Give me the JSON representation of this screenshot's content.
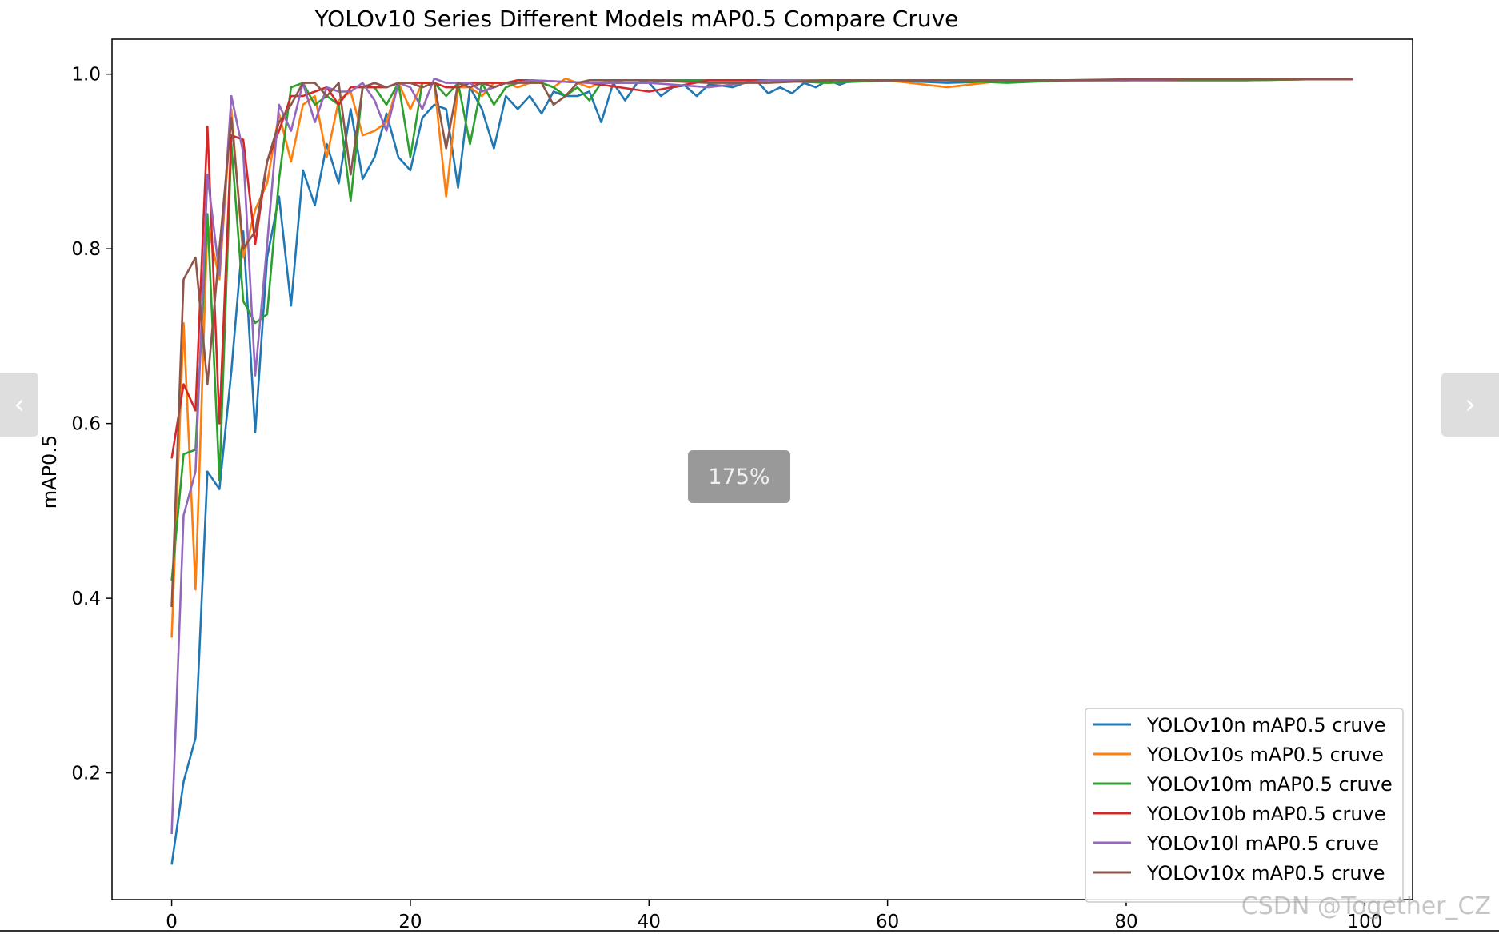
{
  "viewer": {
    "zoom_label": "175%",
    "prev_icon": "chevron-left-icon",
    "next_icon": "chevron-right-icon",
    "prev_glyph": "‹",
    "next_glyph": "›",
    "watermark": "CSDN @Together_CZ"
  },
  "chart_data": {
    "type": "line",
    "title": "YOLOv10 Series Different Models mAP0.5 Compare Cruve",
    "xlabel": "",
    "ylabel": "mAP0.5",
    "xlim": [
      -5,
      104
    ],
    "ylim": [
      0.055,
      1.04
    ],
    "xticks": [
      0,
      20,
      40,
      60,
      80,
      100
    ],
    "yticks": [
      0.2,
      0.4,
      0.6,
      0.8,
      1.0
    ],
    "grid": false,
    "legend": "lower right",
    "series": [
      {
        "name": "YOLOv10n mAP0.5 cruve",
        "color": "#1f77b4",
        "x": [
          0,
          1,
          2,
          3,
          4,
          5,
          6,
          7,
          8,
          9,
          10,
          11,
          12,
          13,
          14,
          15,
          16,
          17,
          18,
          19,
          20,
          21,
          22,
          23,
          24,
          25,
          26,
          27,
          28,
          29,
          30,
          31,
          32,
          33,
          34,
          35,
          36,
          37,
          38,
          39,
          40,
          41,
          42,
          43,
          44,
          45,
          46,
          47,
          48,
          49,
          50,
          51,
          52,
          53,
          54,
          55,
          56,
          57,
          58,
          59,
          60,
          65,
          70,
          75,
          80,
          85,
          90,
          95,
          99
        ],
        "y": [
          0.095,
          0.19,
          0.24,
          0.545,
          0.525,
          0.66,
          0.82,
          0.59,
          0.79,
          0.86,
          0.735,
          0.89,
          0.85,
          0.92,
          0.875,
          0.96,
          0.88,
          0.905,
          0.955,
          0.905,
          0.89,
          0.95,
          0.965,
          0.96,
          0.87,
          0.985,
          0.96,
          0.915,
          0.975,
          0.96,
          0.975,
          0.955,
          0.98,
          0.975,
          0.975,
          0.98,
          0.945,
          0.99,
          0.97,
          0.99,
          0.99,
          0.975,
          0.985,
          0.987,
          0.975,
          0.988,
          0.987,
          0.985,
          0.99,
          0.993,
          0.978,
          0.985,
          0.978,
          0.99,
          0.985,
          0.993,
          0.988,
          0.993,
          0.993,
          0.993,
          0.993,
          0.99,
          0.992,
          0.993,
          0.993,
          0.993,
          0.993,
          0.994,
          0.994
        ]
      },
      {
        "name": "YOLOv10s mAP0.5 cruve",
        "color": "#ff7f0e",
        "x": [
          0,
          1,
          2,
          3,
          4,
          5,
          6,
          7,
          8,
          9,
          10,
          11,
          12,
          13,
          14,
          15,
          16,
          17,
          18,
          19,
          20,
          21,
          22,
          23,
          24,
          25,
          26,
          27,
          28,
          29,
          30,
          31,
          32,
          33,
          34,
          35,
          36,
          37,
          38,
          39,
          40,
          45,
          50,
          55,
          60,
          65,
          70,
          75,
          80,
          85,
          90,
          95,
          99
        ],
        "y": [
          0.355,
          0.715,
          0.41,
          0.83,
          0.765,
          0.96,
          0.79,
          0.845,
          0.875,
          0.955,
          0.9,
          0.965,
          0.975,
          0.905,
          0.97,
          0.98,
          0.93,
          0.935,
          0.945,
          0.99,
          0.96,
          0.99,
          0.99,
          0.86,
          0.985,
          0.985,
          0.975,
          0.99,
          0.99,
          0.985,
          0.99,
          0.99,
          0.985,
          0.995,
          0.99,
          0.985,
          0.99,
          0.993,
          0.99,
          0.99,
          0.993,
          0.993,
          0.993,
          0.99,
          0.993,
          0.985,
          0.993,
          0.993,
          0.993,
          0.993,
          0.993,
          0.994,
          0.994
        ]
      },
      {
        "name": "YOLOv10m mAP0.5 cruve",
        "color": "#2ca02c",
        "x": [
          0,
          1,
          2,
          3,
          4,
          5,
          6,
          7,
          8,
          9,
          10,
          11,
          12,
          13,
          14,
          15,
          16,
          17,
          18,
          19,
          20,
          21,
          22,
          23,
          24,
          25,
          26,
          27,
          28,
          29,
          30,
          31,
          32,
          33,
          34,
          35,
          36,
          37,
          38,
          39,
          40,
          45,
          50,
          55,
          60,
          65,
          70,
          75,
          80,
          85,
          90,
          95,
          99
        ],
        "y": [
          0.42,
          0.565,
          0.57,
          0.84,
          0.535,
          0.92,
          0.74,
          0.715,
          0.725,
          0.88,
          0.985,
          0.99,
          0.965,
          0.975,
          0.965,
          0.855,
          0.985,
          0.985,
          0.965,
          0.99,
          0.905,
          0.99,
          0.99,
          0.975,
          0.99,
          0.92,
          0.99,
          0.965,
          0.985,
          0.99,
          0.993,
          0.99,
          0.985,
          0.975,
          0.985,
          0.97,
          0.99,
          0.99,
          0.99,
          0.99,
          0.993,
          0.993,
          0.993,
          0.99,
          0.993,
          0.993,
          0.99,
          0.993,
          0.993,
          0.993,
          0.993,
          0.994,
          0.994
        ]
      },
      {
        "name": "YOLOv10b mAP0.5 cruve",
        "color": "#d62728",
        "x": [
          0,
          1,
          2,
          3,
          4,
          5,
          6,
          7,
          8,
          9,
          10,
          11,
          12,
          13,
          14,
          15,
          16,
          17,
          18,
          19,
          20,
          21,
          22,
          23,
          24,
          25,
          26,
          27,
          28,
          29,
          30,
          35,
          40,
          45,
          50,
          55,
          60,
          65,
          70,
          75,
          80,
          85,
          90,
          95,
          99
        ],
        "y": [
          0.56,
          0.645,
          0.615,
          0.94,
          0.6,
          0.93,
          0.925,
          0.805,
          0.9,
          0.935,
          0.975,
          0.975,
          0.98,
          0.985,
          0.965,
          0.985,
          0.985,
          0.985,
          0.985,
          0.99,
          0.99,
          0.99,
          0.99,
          0.985,
          0.985,
          0.99,
          0.99,
          0.99,
          0.99,
          0.993,
          0.993,
          0.99,
          0.98,
          0.993,
          0.993,
          0.993,
          0.993,
          0.993,
          0.993,
          0.993,
          0.993,
          0.994,
          0.994,
          0.994,
          0.994
        ]
      },
      {
        "name": "YOLOv10l mAP0.5 cruve",
        "color": "#9467bd",
        "x": [
          0,
          1,
          2,
          3,
          4,
          5,
          6,
          7,
          8,
          9,
          10,
          11,
          12,
          13,
          14,
          15,
          16,
          17,
          18,
          19,
          20,
          21,
          22,
          23,
          24,
          25,
          26,
          27,
          28,
          29,
          30,
          35,
          40,
          45,
          50,
          55,
          60,
          65,
          70,
          75,
          80,
          85,
          90,
          95,
          99
        ],
        "y": [
          0.13,
          0.495,
          0.545,
          0.885,
          0.77,
          0.975,
          0.91,
          0.655,
          0.805,
          0.965,
          0.935,
          0.99,
          0.945,
          0.985,
          0.98,
          0.98,
          0.99,
          0.97,
          0.935,
          0.99,
          0.985,
          0.96,
          0.995,
          0.99,
          0.99,
          0.99,
          0.98,
          0.985,
          0.99,
          0.99,
          0.993,
          0.99,
          0.99,
          0.985,
          0.993,
          0.993,
          0.993,
          0.993,
          0.993,
          0.993,
          0.993,
          0.994,
          0.994,
          0.994,
          0.994
        ]
      },
      {
        "name": "YOLOv10x mAP0.5 cruve",
        "color": "#8c564b",
        "x": [
          0,
          1,
          2,
          3,
          4,
          5,
          6,
          7,
          8,
          9,
          10,
          11,
          12,
          13,
          14,
          15,
          16,
          17,
          18,
          19,
          20,
          21,
          22,
          23,
          24,
          25,
          26,
          27,
          28,
          29,
          30,
          31,
          32,
          33,
          34,
          35,
          40,
          45,
          50,
          55,
          60,
          65,
          70,
          75,
          80,
          85,
          90,
          95,
          99
        ],
        "y": [
          0.39,
          0.765,
          0.79,
          0.645,
          0.8,
          0.95,
          0.8,
          0.82,
          0.9,
          0.945,
          0.965,
          0.99,
          0.99,
          0.975,
          0.99,
          0.885,
          0.985,
          0.99,
          0.985,
          0.99,
          0.99,
          0.985,
          0.99,
          0.915,
          0.99,
          0.985,
          0.99,
          0.985,
          0.99,
          0.99,
          0.99,
          0.99,
          0.965,
          0.975,
          0.99,
          0.993,
          0.993,
          0.99,
          0.99,
          0.993,
          0.993,
          0.993,
          0.993,
          0.993,
          0.994,
          0.994,
          0.994,
          0.994,
          0.994
        ]
      }
    ]
  }
}
